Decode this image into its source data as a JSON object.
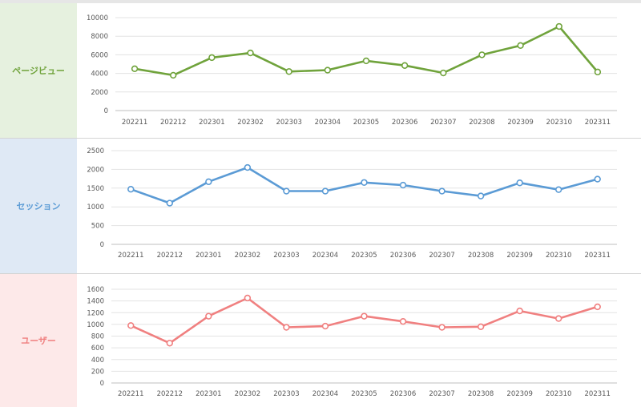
{
  "chart_data": [
    {
      "type": "line",
      "label": "ページビュー",
      "color": "#70a33c",
      "label_bg": "#e6f1df",
      "categories": [
        "202211",
        "202212",
        "202301",
        "202302",
        "202303",
        "202304",
        "202305",
        "202306",
        "202307",
        "202308",
        "202309",
        "202310",
        "202311"
      ],
      "series": [
        {
          "values": [
            4500,
            3800,
            5700,
            6200,
            4200,
            4350,
            5350,
            4850,
            4050,
            6000,
            7000,
            9050,
            4150
          ]
        }
      ],
      "ylim": [
        0,
        10000
      ],
      "yticks": [
        0,
        2000,
        4000,
        6000,
        8000,
        10000
      ],
      "grid": true
    },
    {
      "type": "line",
      "label": "セッション",
      "color": "#5b9bd5",
      "label_bg": "#dfe9f5",
      "categories": [
        "202211",
        "202212",
        "202301",
        "202302",
        "202303",
        "202304",
        "202305",
        "202306",
        "202307",
        "202308",
        "202309",
        "202310",
        "202311"
      ],
      "series": [
        {
          "values": [
            1470,
            1100,
            1670,
            2050,
            1420,
            1420,
            1650,
            1580,
            1420,
            1290,
            1640,
            1460,
            1740
          ]
        }
      ],
      "ylim": [
        0,
        2500
      ],
      "yticks": [
        0,
        500,
        1000,
        1500,
        2000,
        2500
      ],
      "grid": true
    },
    {
      "type": "line",
      "label": "ユーザー",
      "color": "#f08080",
      "label_bg": "#fde9e9",
      "categories": [
        "202211",
        "202212",
        "202301",
        "202302",
        "202303",
        "202304",
        "202305",
        "202306",
        "202307",
        "202308",
        "202309",
        "202310",
        "202311"
      ],
      "series": [
        {
          "values": [
            980,
            680,
            1140,
            1450,
            950,
            970,
            1140,
            1050,
            950,
            960,
            1230,
            1100,
            1300
          ]
        }
      ],
      "ylim": [
        0,
        1600
      ],
      "yticks": [
        0,
        200,
        400,
        600,
        800,
        1000,
        1200,
        1400,
        1600
      ],
      "grid": true
    }
  ]
}
